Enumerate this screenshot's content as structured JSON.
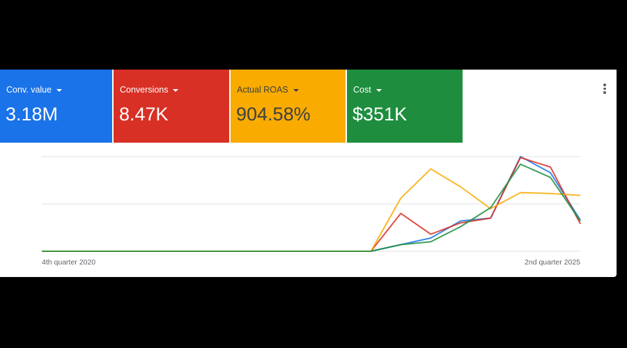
{
  "chart_data": {
    "type": "line",
    "categories": [
      "4th quarter 2020",
      null,
      null,
      null,
      null,
      null,
      null,
      null,
      null,
      null,
      null,
      null,
      null,
      null,
      null,
      null,
      null,
      null,
      "2nd quarter 2025"
    ],
    "series": [
      {
        "name": "Conv. value",
        "total": "3.18M",
        "color": "#1a73e8",
        "values": [
          0,
          0,
          0,
          0,
          0,
          0,
          0,
          0,
          0,
          0,
          0,
          0,
          7,
          14,
          32,
          35,
          100,
          83,
          33
        ]
      },
      {
        "name": "Conversions",
        "total": "8.47K",
        "color": "#d93025",
        "values": [
          0,
          0,
          0,
          0,
          0,
          0,
          0,
          0,
          0,
          0,
          0,
          0,
          40,
          18,
          30,
          35,
          99,
          89,
          29
        ]
      },
      {
        "name": "Actual ROAS",
        "total": "904.58%",
        "color": "#f9ab00",
        "values": [
          0,
          0,
          0,
          0,
          0,
          0,
          0,
          0,
          0,
          0,
          0,
          0,
          56,
          87,
          68,
          45,
          62,
          61,
          59
        ]
      },
      {
        "name": "Cost",
        "total": "$351K",
        "color": "#1e8e3e",
        "values": [
          0,
          0,
          0,
          0,
          0,
          0,
          0,
          0,
          0,
          0,
          0,
          0,
          7,
          10,
          26,
          46,
          92,
          78,
          32
        ]
      }
    ],
    "ylim": [
      0,
      100
    ],
    "yticks": [
      0,
      50,
      100
    ],
    "grid": true
  }
}
